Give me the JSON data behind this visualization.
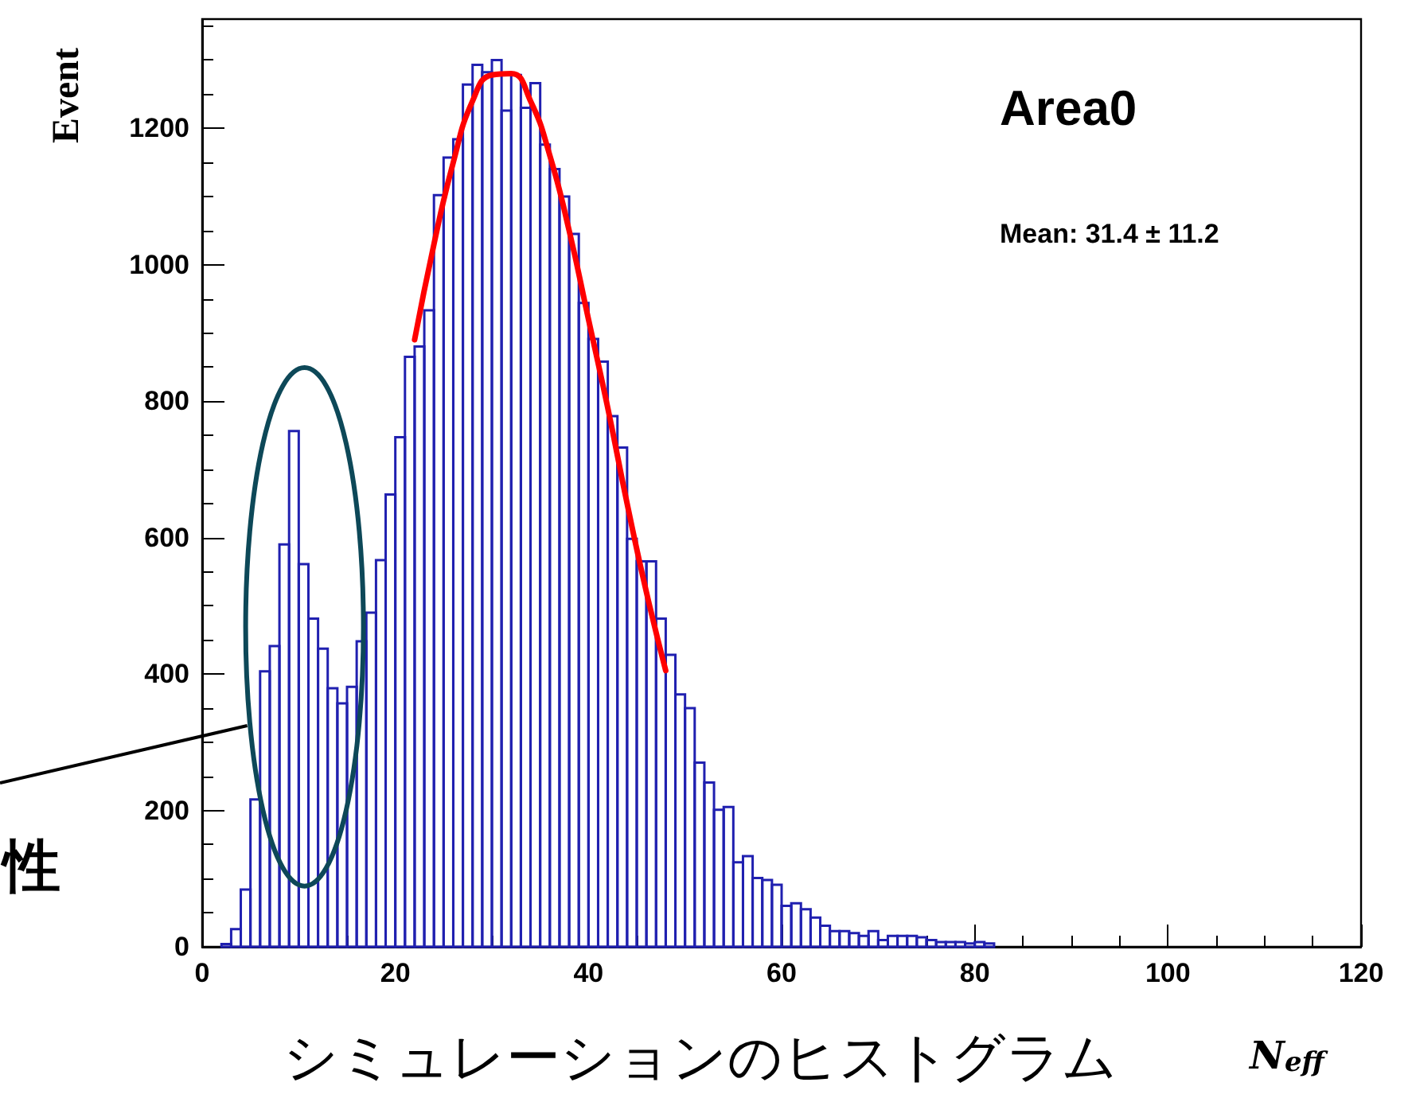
{
  "chart_data": {
    "type": "histogram",
    "title": "Area0",
    "xlabel": "N$_{eff}$",
    "ylabel": "Event",
    "annotations": [
      "Mean: 31.4 ± 11.2",
      "性",
      "シミュレーションのヒストグラム"
    ],
    "bins": [
      2,
      3,
      4,
      5,
      6,
      7,
      8,
      9,
      10,
      11,
      12,
      13,
      14,
      15,
      16,
      17,
      18,
      19,
      20,
      21,
      22,
      23,
      24,
      25,
      26,
      27,
      28,
      29,
      30,
      31,
      32,
      33,
      34,
      35,
      36,
      37,
      38,
      39,
      40,
      41,
      42,
      43,
      44,
      45,
      46,
      47,
      48,
      49,
      50,
      51,
      52,
      53,
      54,
      55,
      56,
      57,
      58,
      59,
      60,
      61,
      62,
      63,
      64,
      65,
      66,
      67,
      68,
      69,
      70,
      71,
      72,
      73,
      74,
      75,
      76,
      77,
      78,
      79,
      80,
      81,
      82
    ],
    "series": [
      {
        "color": "#2020b0",
        "values": [
          4,
          26,
          84,
          216,
          404,
          441,
          590,
          756,
          561,
          481,
          437,
          379,
          357,
          381,
          448,
          490,
          567,
          663,
          747,
          865,
          880,
          933,
          1102,
          1157,
          1184,
          1264,
          1293,
          1282,
          1300,
          1226,
          1278,
          1230,
          1266,
          1176,
          1140,
          1100,
          1045,
          944,
          891,
          858,
          778,
          732,
          598,
          565,
          565,
          481,
          428,
          370,
          350,
          270,
          241,
          201,
          205,
          124,
          133,
          101,
          98,
          91,
          60,
          64,
          55,
          43,
          31,
          23,
          23,
          20,
          16,
          23,
          10,
          16,
          16,
          16,
          14,
          10,
          7,
          7,
          7,
          5,
          7,
          5
        ]
      },
      {
        "type": "line",
        "color": "#ff0000",
        "x": [
          22,
          24,
          26,
          28,
          30,
          32,
          34,
          36,
          38,
          40,
          42,
          44,
          46,
          48
        ],
        "values": [
          890,
          1030,
          1150,
          1240,
          1278,
          1280,
          1240,
          1160,
          1050,
          920,
          790,
          650,
          520,
          405
        ]
      }
    ],
    "xlim": [
      0,
      120
    ],
    "xticks": [
      0,
      20,
      40,
      60,
      80,
      100,
      120
    ],
    "ylim": [
      0,
      1360
    ],
    "yticks": [
      0,
      200,
      400,
      600,
      800,
      1000,
      1200
    ],
    "grid": false,
    "marker": "none",
    "line_style": "solid"
  }
}
